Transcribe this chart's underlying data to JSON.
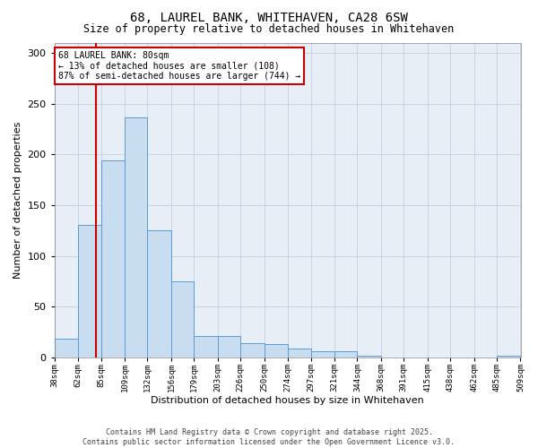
{
  "title": "68, LAUREL BANK, WHITEHAVEN, CA28 6SW",
  "subtitle": "Size of property relative to detached houses in Whitehaven",
  "xlabel": "Distribution of detached houses by size in Whitehaven",
  "ylabel": "Number of detached properties",
  "bar_heights": [
    19,
    131,
    194,
    236,
    125,
    75,
    21,
    21,
    14,
    13,
    9,
    6,
    6,
    2,
    0,
    0,
    0,
    0,
    0,
    2
  ],
  "bin_edges": [
    38,
    62,
    85,
    109,
    132,
    156,
    179,
    203,
    226,
    250,
    274,
    297,
    321,
    344,
    368,
    391,
    415,
    438,
    462,
    485,
    509
  ],
  "tick_labels": [
    "38sqm",
    "62sqm",
    "85sqm",
    "109sqm",
    "132sqm",
    "156sqm",
    "179sqm",
    "203sqm",
    "226sqm",
    "250sqm",
    "274sqm",
    "297sqm",
    "321sqm",
    "344sqm",
    "368sqm",
    "391sqm",
    "415sqm",
    "438sqm",
    "462sqm",
    "485sqm",
    "509sqm"
  ],
  "bar_facecolor": "#c9ddf0",
  "bar_edgecolor": "#5b9bd5",
  "grid_color": "#c8d4e5",
  "axes_bg": "#e8eef5",
  "vline_x": 80,
  "vline_color": "#cc0000",
  "ann_text": "68 LAUREL BANK: 80sqm\n← 13% of detached houses are smaller (108)\n87% of semi-detached houses are larger (744) →",
  "ann_fc": "#ffffff",
  "ann_ec": "#cc0000",
  "ylim": [
    0,
    310
  ],
  "footer1": "Contains HM Land Registry data © Crown copyright and database right 2025.",
  "footer2": "Contains public sector information licensed under the Open Government Licence v3.0."
}
